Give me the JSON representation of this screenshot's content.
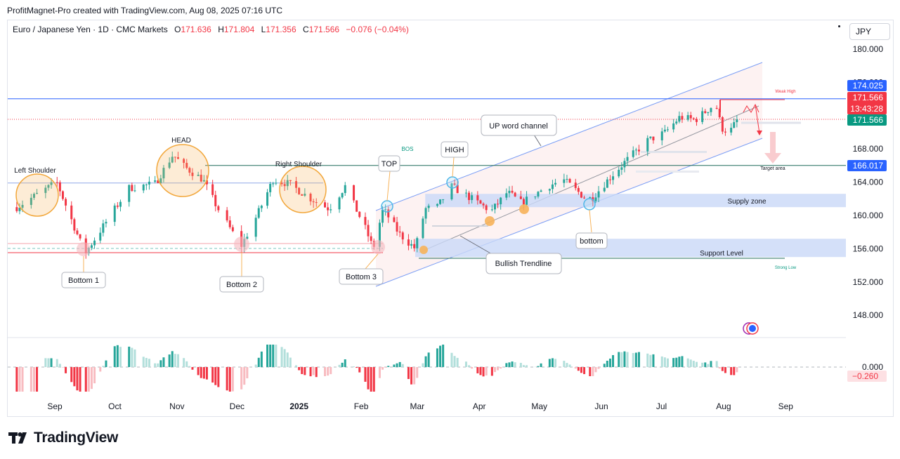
{
  "header": {
    "credit": "ProfitMagnet-Pro created with TradingView.com, Aug 08, 2025 07:16 UTC"
  },
  "legend": {
    "symbol": "Euro / Japanese Yen · 1D · CMC Markets",
    "open_label": "O",
    "open": "171.636",
    "high_label": "H",
    "high": "171.804",
    "low_label": "L",
    "low": "171.356",
    "close_label": "C",
    "close": "171.566",
    "change": "−0.076 (−0.04%)"
  },
  "currency_button": "JPY",
  "brand": {
    "name": "TradingView"
  },
  "colors": {
    "up": "#26a69a",
    "down": "#f23645",
    "level_blue": "#2962ff",
    "zone_blue": "#c9d8f8",
    "highlight_orange": "#f7b35a",
    "highlight_pink": "#f5b7be",
    "channel_fill": "#fbe7e7",
    "osc_up_strong": "#26a69a",
    "osc_up_weak": "#b2dfdb",
    "osc_down_strong": "#f23645",
    "osc_down_weak": "#f8bbc0"
  },
  "chart_data": {
    "type": "candlestick",
    "title": "Euro / Japanese Yen · 1D · CMC Markets",
    "price_axis": {
      "ticks": [
        "180.000",
        "176.000",
        "172.000",
        "168.000",
        "164.000",
        "160.000",
        "156.000",
        "152.000",
        "148.000"
      ],
      "tick_values": [
        180,
        176,
        172,
        168,
        164,
        160,
        156,
        152,
        148
      ],
      "range": [
        144.7,
        182.0
      ]
    },
    "time_axis": {
      "labels": [
        "Sep",
        "Oct",
        "Nov",
        "Dec",
        "2025",
        "Feb",
        "Mar",
        "Apr",
        "May",
        "Jun",
        "Jul",
        "Aug",
        "Sep"
      ],
      "bold_labels": [
        "2025"
      ],
      "dates": [
        "2024-09-01",
        "2024-10-01",
        "2024-11-01",
        "2024-12-01",
        "2025-01-01",
        "2025-02-01",
        "2025-03-01",
        "2025-04-01",
        "2025-05-01",
        "2025-06-01",
        "2025-07-01",
        "2025-08-01",
        "2025-09-01"
      ]
    },
    "price_badges": [
      {
        "value": "174.025",
        "color": "#2962ff"
      },
      {
        "value": "171.566",
        "sub": "13:43:28",
        "color": "#f23645"
      },
      {
        "value": "171.566",
        "color": "#089981"
      },
      {
        "value": "166.017",
        "color": "#2962ff"
      }
    ],
    "anchors": [
      {
        "date": "2024-08-13",
        "price": 161.0
      },
      {
        "date": "2024-09-02",
        "price": 164.0
      },
      {
        "date": "2024-09-16",
        "price": 155.4
      },
      {
        "date": "2024-10-01",
        "price": 160.8
      },
      {
        "date": "2024-10-08",
        "price": 163.3
      },
      {
        "date": "2024-10-21",
        "price": 163.8
      },
      {
        "date": "2024-10-30",
        "price": 167.3
      },
      {
        "date": "2024-11-05",
        "price": 165.8
      },
      {
        "date": "2024-11-14",
        "price": 164.3
      },
      {
        "date": "2024-11-21",
        "price": 161.0
      },
      {
        "date": "2024-12-03",
        "price": 156.3
      },
      {
        "date": "2024-12-11",
        "price": 160.0
      },
      {
        "date": "2024-12-19",
        "price": 164.3
      },
      {
        "date": "2024-12-27",
        "price": 163.8
      },
      {
        "date": "2025-01-07",
        "price": 162.0
      },
      {
        "date": "2025-01-16",
        "price": 160.8
      },
      {
        "date": "2025-01-24",
        "price": 163.5
      },
      {
        "date": "2025-02-03",
        "price": 158.5
      },
      {
        "date": "2025-02-07",
        "price": 156.0
      },
      {
        "date": "2025-02-12",
        "price": 160.8
      },
      {
        "date": "2025-02-20",
        "price": 157.8
      },
      {
        "date": "2025-02-28",
        "price": 156.0
      },
      {
        "date": "2025-03-05",
        "price": 160.8
      },
      {
        "date": "2025-03-11",
        "price": 161.0
      },
      {
        "date": "2025-03-18",
        "price": 163.5
      },
      {
        "date": "2025-03-25",
        "price": 162.5
      },
      {
        "date": "2025-04-07",
        "price": 160.5
      },
      {
        "date": "2025-04-15",
        "price": 162.8
      },
      {
        "date": "2025-04-22",
        "price": 161.5
      },
      {
        "date": "2025-05-05",
        "price": 163.5
      },
      {
        "date": "2025-05-13",
        "price": 164.3
      },
      {
        "date": "2025-05-23",
        "price": 162.3
      },
      {
        "date": "2025-05-27",
        "price": 162.0
      },
      {
        "date": "2025-06-05",
        "price": 164.5
      },
      {
        "date": "2025-06-13",
        "price": 166.5
      },
      {
        "date": "2025-06-24",
        "price": 169.0
      },
      {
        "date": "2025-07-03",
        "price": 170.0
      },
      {
        "date": "2025-07-10",
        "price": 171.8
      },
      {
        "date": "2025-07-18",
        "price": 171.5
      },
      {
        "date": "2025-07-28",
        "price": 173.5
      },
      {
        "date": "2025-07-31",
        "price": 170.5
      },
      {
        "date": "2025-08-04",
        "price": 170.0
      },
      {
        "date": "2025-08-08",
        "price": 171.566
      }
    ],
    "zones": [
      {
        "label": "Supply zone",
        "from": "2025-03-05",
        "to": "2025-10-10",
        "top": 162.6,
        "bottom": 161.0
      },
      {
        "label": "Support Level",
        "from": "2025-02-28",
        "to": "2025-10-10",
        "top": 157.2,
        "bottom": 155.0
      }
    ],
    "levels": [
      {
        "price": 174.025,
        "style": "solid"
      },
      {
        "price": 171.566,
        "style": "dotted"
      },
      {
        "price": 166.017,
        "style": "solid"
      },
      {
        "price": 163.9,
        "style": "neckline"
      }
    ],
    "annotations": [
      {
        "text": "Left Shoulder",
        "type": "label"
      },
      {
        "text": "HEAD",
        "type": "label"
      },
      {
        "text": "Right Shoulder",
        "type": "label"
      },
      {
        "text": "Bottom 1",
        "type": "callout"
      },
      {
        "text": "Bottom 2",
        "type": "callout"
      },
      {
        "text": "Bottom 3",
        "type": "callout"
      },
      {
        "text": "TOP",
        "type": "callout"
      },
      {
        "text": "BOS",
        "type": "label"
      },
      {
        "text": "HIGH",
        "type": "callout"
      },
      {
        "text": "UP word channel",
        "type": "callout"
      },
      {
        "text": "Bullish Trendline",
        "type": "callout"
      },
      {
        "text": "bottom",
        "type": "callout"
      },
      {
        "text": "Supply zone",
        "type": "label"
      },
      {
        "text": "Support Level",
        "type": "label"
      },
      {
        "text": "Weak High",
        "type": "label"
      },
      {
        "text": "Target area",
        "type": "label"
      },
      {
        "text": "Strong Low",
        "type": "label"
      }
    ],
    "oscillator": {
      "ticks": [
        "0.000"
      ],
      "last_value": "−0.260"
    }
  }
}
